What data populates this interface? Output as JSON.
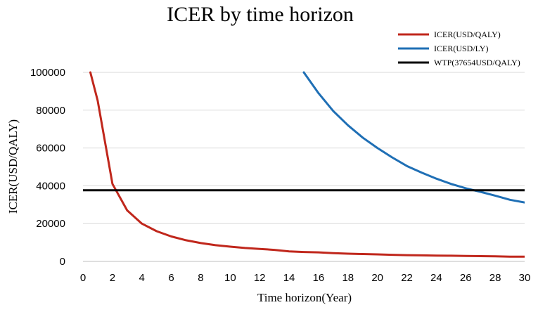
{
  "chart_data": {
    "type": "line",
    "title": "ICER by time horizon",
    "xlabel": "Time horizon(Year)",
    "ylabel": "ICER(USD/QALY)",
    "xlim": [
      0,
      30
    ],
    "ylim": [
      0,
      100000
    ],
    "x_ticks": [
      "0",
      "2",
      "4",
      "6",
      "8",
      "10",
      "12",
      "14",
      "16",
      "18",
      "20",
      "22",
      "24",
      "26",
      "28",
      "30"
    ],
    "y_ticks": [
      "0",
      "20000",
      "40000",
      "60000",
      "80000",
      "100000"
    ],
    "grid": true,
    "legend_position": "top-right",
    "series": [
      {
        "name": "ICER(USD/QALY)",
        "color": "#c0271c",
        "x": [
          0.5,
          1,
          2,
          3,
          4,
          5,
          6,
          7,
          8,
          9,
          10,
          11,
          12,
          13,
          14,
          15,
          16,
          17,
          18,
          19,
          20,
          21,
          22,
          23,
          24,
          25,
          26,
          27,
          28,
          29,
          30
        ],
        "y": [
          100000,
          85000,
          41000,
          27000,
          20000,
          16000,
          13200,
          11200,
          9700,
          8600,
          7800,
          7100,
          6600,
          6100,
          5300,
          5000,
          4800,
          4400,
          4100,
          3900,
          3700,
          3500,
          3300,
          3200,
          3100,
          3000,
          2900,
          2800,
          2700,
          2500,
          2500
        ]
      },
      {
        "name": "ICER(USD/LY)",
        "color": "#1f6fb5",
        "x": [
          15,
          16,
          17,
          18,
          19,
          20,
          21,
          22,
          23,
          24,
          25,
          26,
          27,
          28,
          29,
          30
        ],
        "y": [
          100000,
          89000,
          79500,
          72000,
          65500,
          60000,
          55000,
          50500,
          47000,
          43800,
          41000,
          38700,
          36800,
          34800,
          32600,
          31200
        ]
      },
      {
        "name": "WTP(37654USD/QALY)",
        "color": "#000000",
        "x": [
          0,
          30
        ],
        "y": [
          37654,
          37654
        ]
      }
    ]
  }
}
